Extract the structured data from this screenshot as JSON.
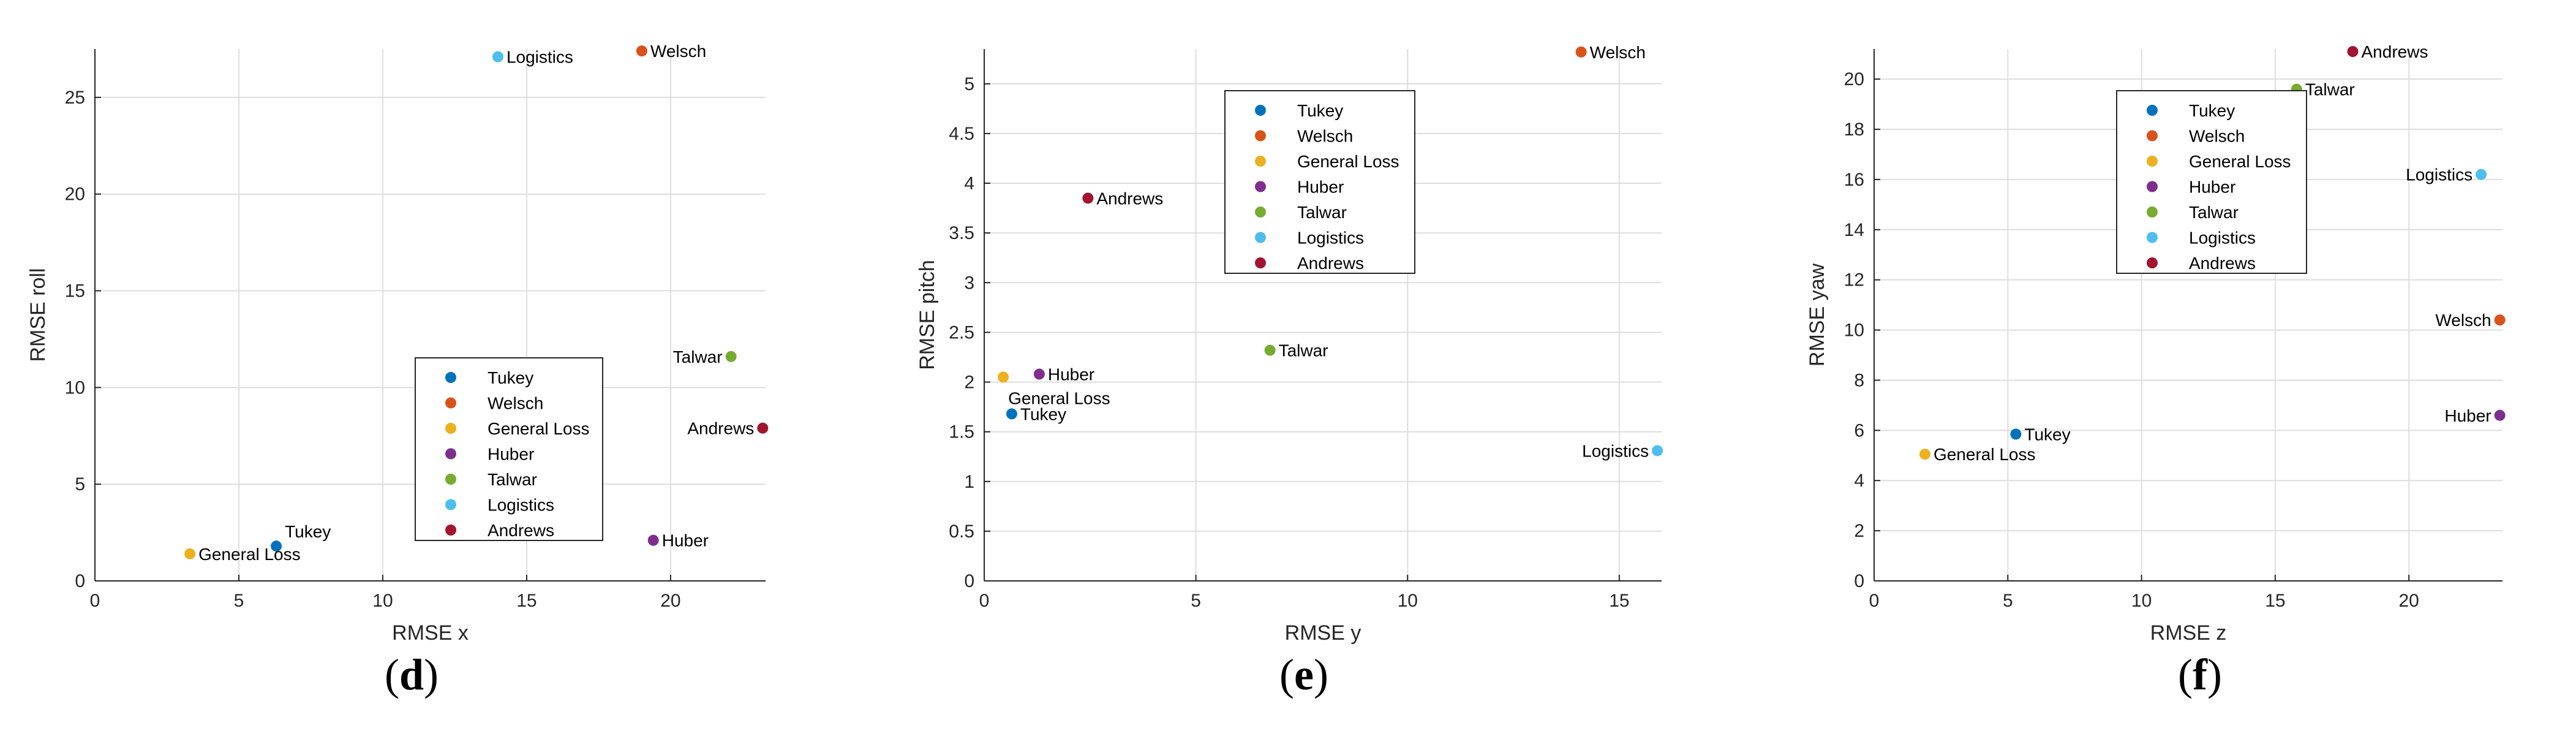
{
  "chart_data": [
    {
      "type": "scatter",
      "xlabel": "RMSE x",
      "ylabel": "RMSE roll",
      "xlim": [
        0,
        23.3
      ],
      "ylim": [
        0,
        27.5
      ],
      "xticks": [
        0,
        5,
        10,
        15,
        20
      ],
      "yticks": [
        0,
        5,
        10,
        15,
        20,
        25
      ],
      "grid": true,
      "caption": {
        "open": "(",
        "letter": "d",
        "close": ")"
      },
      "legend": {
        "position": "center-bottom"
      },
      "series": [
        {
          "name": "Tukey",
          "color": "#0072BD",
          "x": 6.3,
          "y": 1.8,
          "label": "Tukey",
          "label_side": "above-right"
        },
        {
          "name": "Welsch",
          "color": "#D95319",
          "x": 19.0,
          "y": 27.4,
          "label": "Welsch",
          "label_side": "right"
        },
        {
          "name": "General Loss",
          "color": "#EDB120",
          "x": 3.3,
          "y": 1.4,
          "label": "General Loss",
          "label_side": "right"
        },
        {
          "name": "Huber",
          "color": "#7E2F8E",
          "x": 19.4,
          "y": 2.1,
          "label": "Huber",
          "label_side": "right"
        },
        {
          "name": "Talwar",
          "color": "#77AC30",
          "x": 22.1,
          "y": 11.6,
          "label": "Talwar",
          "label_side": "left"
        },
        {
          "name": "Logistics",
          "color": "#4DBEEE",
          "x": 14.0,
          "y": 27.1,
          "label": "Logistics",
          "label_side": "right"
        },
        {
          "name": "Andrews",
          "color": "#A2142F",
          "x": 23.2,
          "y": 7.9,
          "label": "Andrews",
          "label_side": "left"
        }
      ]
    },
    {
      "type": "scatter",
      "xlabel": "RMSE y",
      "ylabel": "RMSE pitch",
      "xlim": [
        0,
        16
      ],
      "ylim": [
        0,
        5.35
      ],
      "xticks": [
        0,
        5,
        10,
        15
      ],
      "yticks": [
        0,
        0.5,
        1,
        1.5,
        2,
        2.5,
        3,
        3.5,
        4,
        4.5,
        5
      ],
      "grid": true,
      "caption": {
        "open": "(",
        "letter": "e",
        "close": ")"
      },
      "legend": {
        "position": "top-center"
      },
      "series": [
        {
          "name": "Tukey",
          "color": "#0072BD",
          "x": 0.65,
          "y": 1.68,
          "label": "Tukey",
          "label_side": "right"
        },
        {
          "name": "Welsch",
          "color": "#D95319",
          "x": 14.1,
          "y": 5.32,
          "label": "Welsch",
          "label_side": "right"
        },
        {
          "name": "General Loss",
          "color": "#EDB120",
          "x": 0.45,
          "y": 2.05,
          "label": "General Loss",
          "label_side": "below-right"
        },
        {
          "name": "Huber",
          "color": "#7E2F8E",
          "x": 1.3,
          "y": 2.08,
          "label": "Huber",
          "label_side": "right"
        },
        {
          "name": "Talwar",
          "color": "#77AC30",
          "x": 6.75,
          "y": 2.32,
          "label": "Talwar",
          "label_side": "right"
        },
        {
          "name": "Logistics",
          "color": "#4DBEEE",
          "x": 15.9,
          "y": 1.31,
          "label": "Logistics",
          "label_side": "left"
        },
        {
          "name": "Andrews",
          "color": "#A2142F",
          "x": 2.45,
          "y": 3.85,
          "label": "Andrews",
          "label_side": "right"
        }
      ]
    },
    {
      "type": "scatter",
      "xlabel": "RMSE z",
      "ylabel": "RMSE yaw",
      "xlim": [
        0,
        23.5
      ],
      "ylim": [
        0,
        21.2
      ],
      "xticks": [
        0,
        5,
        10,
        15,
        20
      ],
      "yticks": [
        0,
        2,
        4,
        6,
        8,
        10,
        12,
        14,
        16,
        18,
        20
      ],
      "grid": true,
      "caption": {
        "open": "(",
        "letter": "f",
        "close": ")"
      },
      "legend": {
        "position": "top-center"
      },
      "series": [
        {
          "name": "Tukey",
          "color": "#0072BD",
          "x": 5.3,
          "y": 5.85,
          "label": "Tukey",
          "label_side": "right"
        },
        {
          "name": "Welsch",
          "color": "#D95319",
          "x": 23.4,
          "y": 10.4,
          "label": "Welsch",
          "label_side": "left"
        },
        {
          "name": "General Loss",
          "color": "#EDB120",
          "x": 1.9,
          "y": 5.05,
          "label": "General Loss",
          "label_side": "right"
        },
        {
          "name": "Huber",
          "color": "#7E2F8E",
          "x": 23.4,
          "y": 6.6,
          "label": "Huber",
          "label_side": "left"
        },
        {
          "name": "Talwar",
          "color": "#77AC30",
          "x": 15.8,
          "y": 19.6,
          "label": "Talwar",
          "label_side": "right"
        },
        {
          "name": "Logistics",
          "color": "#4DBEEE",
          "x": 22.7,
          "y": 16.2,
          "label": "Logistics",
          "label_side": "left"
        },
        {
          "name": "Andrews",
          "color": "#A2142F",
          "x": 17.9,
          "y": 21.1,
          "label": "Andrews",
          "label_side": "right"
        }
      ]
    }
  ]
}
